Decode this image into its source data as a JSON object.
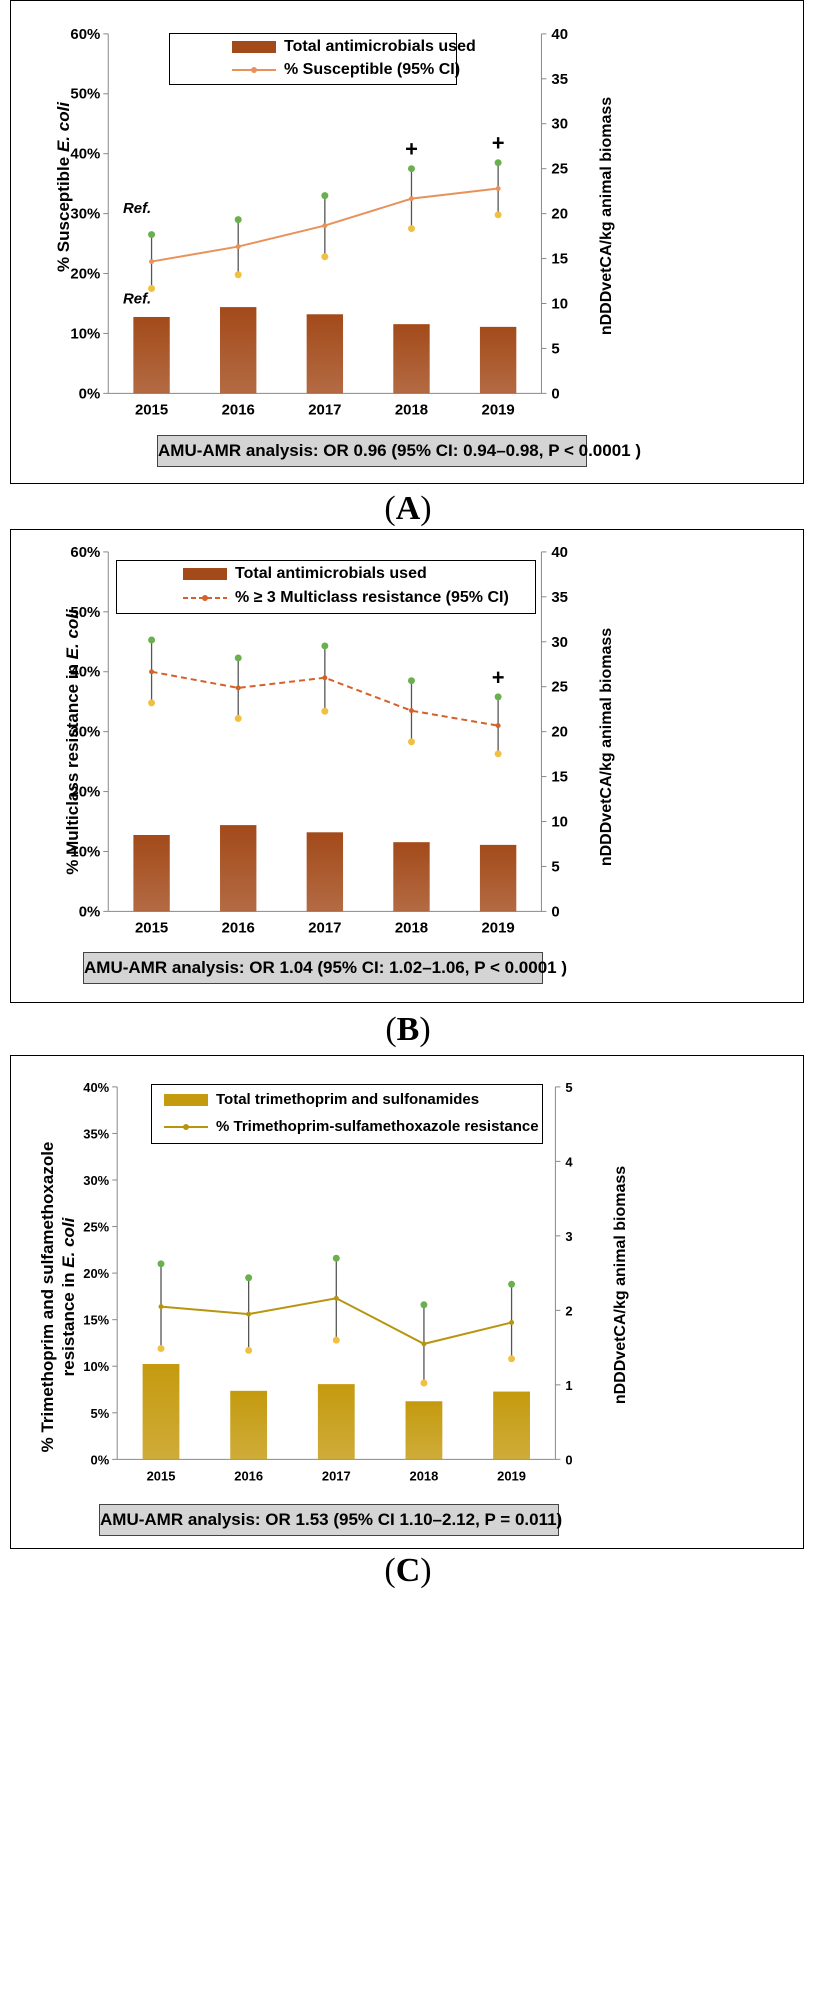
{
  "chart_data": [
    {
      "type": "bar+line",
      "panel_label": "A",
      "categories": [
        "2015",
        "2016",
        "2017",
        "2018",
        "2019"
      ],
      "bar_series": {
        "name": "Total antimicrobials used",
        "values": [
          8.5,
          9.6,
          8.8,
          7.7,
          7.4
        ],
        "color": "#a34a1a"
      },
      "line_series": {
        "name": "% Susceptible  (95% CI)",
        "values": [
          0.22,
          0.245,
          0.28,
          0.325,
          0.342
        ],
        "ci_upper": [
          0.265,
          0.29,
          0.33,
          0.375,
          0.385
        ],
        "ci_lower": [
          0.175,
          0.198,
          0.228,
          0.275,
          0.298
        ],
        "color": "#e8925a",
        "dashed": false
      },
      "ylabel_left": "% Susceptible E. coli",
      "ylabel_right": "nDDDvetCA/kg animal biomass",
      "ylim_left": [
        0,
        0.6
      ],
      "yticks_left": [
        "0%",
        "10%",
        "20%",
        "30%",
        "40%",
        "50%",
        "60%"
      ],
      "ylim_right": [
        0,
        40
      ],
      "yticks_right": [
        "0",
        "5",
        "10",
        "15",
        "20",
        "25",
        "30",
        "35",
        "40"
      ],
      "ref_labels": [
        "Ref.",
        "Ref."
      ],
      "plus_markers": [
        "2018",
        "2019"
      ],
      "plus_symbol": "+",
      "stats": "AMU-AMR analysis: OR 0.96 (95%  CI: 0.94–0.98, P < 0.0001 )"
    },
    {
      "type": "bar+line",
      "panel_label": "B",
      "categories": [
        "2015",
        "2016",
        "2017",
        "2018",
        "2019"
      ],
      "bar_series": {
        "name": "Total antimicrobials used",
        "values": [
          8.5,
          9.6,
          8.8,
          7.7,
          7.4
        ],
        "color": "#a34a1a"
      },
      "line_series": {
        "name": "% ≥ 3 Multiclass resistance  (95% CI)",
        "values": [
          0.4,
          0.373,
          0.39,
          0.335,
          0.31
        ],
        "ci_upper": [
          0.453,
          0.423,
          0.443,
          0.385,
          0.358
        ],
        "ci_lower": [
          0.348,
          0.322,
          0.334,
          0.283,
          0.263
        ],
        "color": "#d4602a",
        "dashed": true
      },
      "ylabel_left": "% Multiclass resistance in E. coli",
      "ylabel_right": "nDDDvetCA/kg animal biomass",
      "ylim_left": [
        0,
        0.6
      ],
      "yticks_left": [
        "0%",
        "10%",
        "20%",
        "30%",
        "40%",
        "50%",
        "60%"
      ],
      "ylim_right": [
        0,
        40
      ],
      "yticks_right": [
        "0",
        "5",
        "10",
        "15",
        "20",
        "25",
        "30",
        "35",
        "40"
      ],
      "plus_markers": [
        "2019"
      ],
      "plus_symbol": "+",
      "stats": "AMU-AMR analysis: OR 1.04 (95%  CI: 1.02–1.06, P < 0.0001 )"
    },
    {
      "type": "bar+line",
      "panel_label": "C",
      "categories": [
        "2015",
        "2016",
        "2017",
        "2018",
        "2019"
      ],
      "bar_series": {
        "name": "Total trimethoprim and sulfonamides",
        "values": [
          1.28,
          0.92,
          1.01,
          0.78,
          0.91
        ],
        "color": "#c49a0e"
      },
      "line_series": {
        "name": "% Trimethoprim-sulfamethoxazole resistance",
        "values": [
          0.164,
          0.156,
          0.173,
          0.124,
          0.147
        ],
        "ci_upper": [
          0.21,
          0.195,
          0.216,
          0.166,
          0.188
        ],
        "ci_lower": [
          0.119,
          0.117,
          0.128,
          0.082,
          0.108
        ],
        "color": "#b8950f",
        "dashed": false
      },
      "ylabel_left": "% Trimethoprim and sulfamethoxazole resistance in E. coli",
      "ylabel_right": "nDDDvetCA/kg animal biomass",
      "ylim_left": [
        0,
        0.4
      ],
      "yticks_left": [
        "0%",
        "5%",
        "10%",
        "15%",
        "20%",
        "25%",
        "30%",
        "35%",
        "40%"
      ],
      "ylim_right": [
        0,
        5
      ],
      "yticks_right": [
        "0",
        "1",
        "2",
        "3",
        "4",
        "5"
      ],
      "stats": "AMU-AMR analysis: OR 1.53  (95% CI 1.10–2.12, P = 0.011)"
    }
  ],
  "colors": {
    "ci_upper": "#6ab04c",
    "ci_lower": "#f0c040"
  },
  "ylabel_text": {
    "A": {
      "pre": "% Susceptible ",
      "italic": "E. coli",
      "post": ""
    },
    "B": {
      "pre": "% Multiclass resistance in ",
      "italic": "E. coli",
      "post": ""
    },
    "C1": {
      "pre": "% Trimethoprim and sulfamethoxazole",
      "italic": "",
      "post": ""
    },
    "C2": {
      "pre": "resistance in ",
      "italic": "E. coli",
      "post": ""
    }
  }
}
